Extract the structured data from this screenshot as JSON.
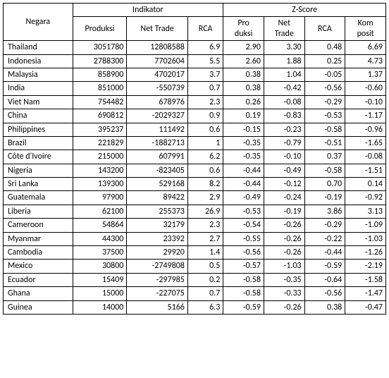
{
  "table": {
    "header": {
      "country": "Negara",
      "group_indikator": "Indikator",
      "group_zscore": "Z-Score",
      "produksi": "Produksi",
      "net_trade": "Net Trade",
      "rca": "RCA",
      "z_produksi_line1": "Pro",
      "z_produksi_line2": "duksi",
      "z_net_trade_line1": "Net",
      "z_net_trade_line2": "Trade",
      "z_rca": "RCA",
      "z_komposit_line1": "Kom",
      "z_komposit_line2": "posit"
    },
    "rows": [
      {
        "country": "Thailand",
        "produksi": "3051780",
        "net_trade": "12808588",
        "rca": "6.9",
        "z_prod": "2.90",
        "z_net": "3.30",
        "z_rca": "0.48",
        "z_komp": "6.69"
      },
      {
        "country": "Indonesia",
        "produksi": "2788300",
        "net_trade": "7702604",
        "rca": "5.5",
        "z_prod": "2.60",
        "z_net": "1.88",
        "z_rca": "0.25",
        "z_komp": "4.73"
      },
      {
        "country": "Malaysia",
        "produksi": "858900",
        "net_trade": "4702017",
        "rca": "3.7",
        "z_prod": "0.38",
        "z_net": "1.04",
        "z_rca": "-0.05",
        "z_komp": "1.37"
      },
      {
        "country": "India",
        "produksi": "851000",
        "net_trade": "-550739",
        "rca": "0.7",
        "z_prod": "0.38",
        "z_net": "-0.42",
        "z_rca": "-0.56",
        "z_komp": "-0.60"
      },
      {
        "country": "Viet Nam",
        "produksi": "754482",
        "net_trade": "678976",
        "rca": "2.3",
        "z_prod": "0.26",
        "z_net": "-0.08",
        "z_rca": "-0.29",
        "z_komp": "-0.10"
      },
      {
        "country": "China",
        "produksi": "690812",
        "net_trade": "-2029327",
        "rca": "0.9",
        "z_prod": "0.19",
        "z_net": "-0.83",
        "z_rca": "-0.53",
        "z_komp": "-1.17"
      },
      {
        "country": "Philippines",
        "produksi": "395237",
        "net_trade": "111492",
        "rca": "0.6",
        "z_prod": "-0.15",
        "z_net": "-0.23",
        "z_rca": "-0.58",
        "z_komp": "-0.96"
      },
      {
        "country": "Brazil",
        "produksi": "221829",
        "net_trade": "-1882713",
        "rca": "1",
        "z_prod": "-0.35",
        "z_net": "-0.79",
        "z_rca": "-0.51",
        "z_komp": "-1.65"
      },
      {
        "country": "Côte d'Ivoire",
        "produksi": "215000",
        "net_trade": "607991",
        "rca": "6.2",
        "z_prod": "-0.35",
        "z_net": "-0.10",
        "z_rca": "0.37",
        "z_komp": "-0.08"
      },
      {
        "country": "Nigeria",
        "produksi": "143200",
        "net_trade": "-823405",
        "rca": "0.6",
        "z_prod": "-0.44",
        "z_net": "-0.49",
        "z_rca": "-0.58",
        "z_komp": "-1.51"
      },
      {
        "country": "Sri Lanka",
        "produksi": "139300",
        "net_trade": "529168",
        "rca": "8.2",
        "z_prod": "-0.44",
        "z_net": "-0.12",
        "z_rca": "0.70",
        "z_komp": "0.14"
      },
      {
        "country": "Guatemala",
        "produksi": "97900",
        "net_trade": "89422",
        "rca": "2.9",
        "z_prod": "-0.49",
        "z_net": "-0.24",
        "z_rca": "-0.19",
        "z_komp": "-0.92"
      },
      {
        "country": "Liberia",
        "produksi": "62100",
        "net_trade": "255373",
        "rca": "26.9",
        "z_prod": "-0.53",
        "z_net": "-0.19",
        "z_rca": "3.86",
        "z_komp": "3.13"
      },
      {
        "country": "Cameroon",
        "produksi": "54864",
        "net_trade": "32179",
        "rca": "2.3",
        "z_prod": "-0.54",
        "z_net": "-0.26",
        "z_rca": "-0.29",
        "z_komp": "-1.09"
      },
      {
        "country": "Myanmar",
        "produksi": "44300",
        "net_trade": "23392",
        "rca": "2.7",
        "z_prod": "-0.55",
        "z_net": "-0.26",
        "z_rca": "-0.22",
        "z_komp": "-1.03"
      },
      {
        "country": "Cambodia",
        "produksi": "37500",
        "net_trade": "29920",
        "rca": "1.4",
        "z_prod": "-0.56",
        "z_net": "-0.26",
        "z_rca": "-0.44",
        "z_komp": "-1.26"
      },
      {
        "country": "Mexico",
        "produksi": "30800",
        "net_trade": "-2749808",
        "rca": "0.5",
        "z_prod": "-0.57",
        "z_net": "-1.03",
        "z_rca": "-0.59",
        "z_komp": "-2.19"
      },
      {
        "country": "Ecuador",
        "produksi": "15409",
        "net_trade": "-297985",
        "rca": "0.2",
        "z_prod": "-0.58",
        "z_net": "-0.35",
        "z_rca": "-0.64",
        "z_komp": "-1.58"
      },
      {
        "country": "Ghana",
        "produksi": "15000",
        "net_trade": "-227075",
        "rca": "0.7",
        "z_prod": "-0.58",
        "z_net": "-0.33",
        "z_rca": "-0.56",
        "z_komp": "-1.47"
      },
      {
        "country": "Guinea",
        "produksi": "14000",
        "net_trade": "5166",
        "rca": "6.3",
        "z_prod": "-0.59",
        "z_net": "-0.26",
        "z_rca": "0.38",
        "z_komp": "-0.47"
      }
    ]
  },
  "style": {
    "font_family": "Calibri, Arial, sans-serif",
    "font_size_pt": 9,
    "border_color": "#000000",
    "background_color": "#ffffff",
    "text_color": "#000000"
  }
}
